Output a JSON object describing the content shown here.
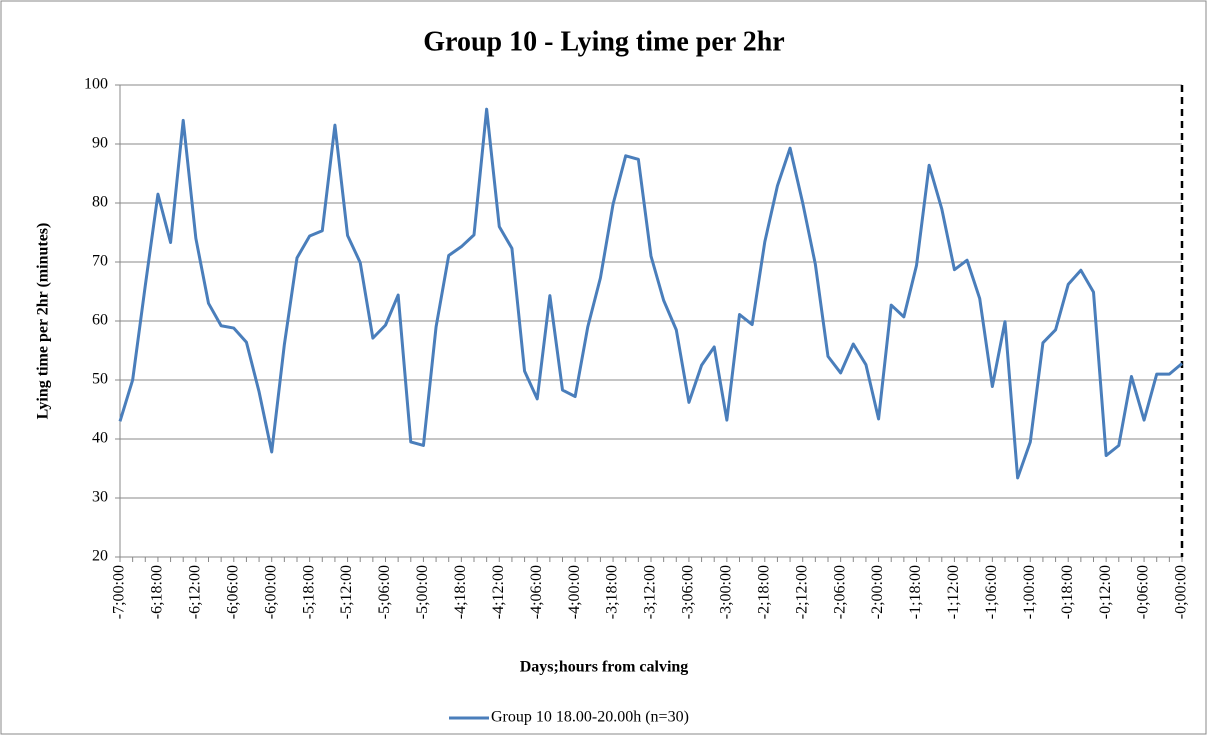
{
  "chart_data": {
    "type": "line",
    "title": "Group 10 - Lying time per 2hr",
    "x_label": "Days;hours from calving",
    "y_label": "Lying time per 2hr (minutes)",
    "categories": [
      "-7;00:00",
      null,
      null,
      "-6;18:00",
      null,
      null,
      "-6;12:00",
      null,
      null,
      "-6;06:00",
      null,
      null,
      "-6;00:00",
      null,
      null,
      "-5;18:00",
      null,
      null,
      "-5;12:00",
      null,
      null,
      "-5;06:00",
      null,
      null,
      "-5;00:00",
      null,
      null,
      "-4;18:00",
      null,
      null,
      "-4;12:00",
      null,
      null,
      "-4;06:00",
      null,
      null,
      "-4;00:00",
      null,
      null,
      "-3;18:00",
      null,
      null,
      "-3;12:00",
      null,
      null,
      "-3;06:00",
      null,
      null,
      "-3;00:00",
      null,
      null,
      "-2;18:00",
      null,
      null,
      "-2;12:00",
      null,
      null,
      "-2;06:00",
      null,
      null,
      "-2;00:00",
      null,
      null,
      "-1;18:00",
      null,
      null,
      "-1;12:00",
      null,
      null,
      "-1;06:00",
      null,
      null,
      "-1;00:00",
      null,
      null,
      "-0;18:00",
      null,
      null,
      "-0;12:00",
      null,
      null,
      "-0;06:00",
      null,
      null,
      "-0;00:00"
    ],
    "series": [
      {
        "name": "Group 10 18.00-20.00h (n=30)",
        "color": "#4a7ebb",
        "values": [
          43,
          50,
          66,
          81.5,
          73.3,
          94,
          74,
          63,
          59.2,
          58.8,
          56.4,
          48,
          37.8,
          56,
          70.7,
          74.4,
          75.3,
          93.2,
          74.5,
          69.9,
          57.1,
          59.3,
          64.4,
          39.5,
          38.9,
          59,
          71.1,
          72.6,
          74.6,
          95.9,
          76,
          72.3,
          51.5,
          46.8,
          64.3,
          48.3,
          47.2,
          59,
          67.3,
          79.8,
          88,
          87.4,
          71,
          63.5,
          58.5,
          46.2,
          52.5,
          55.6,
          43.2,
          61.1,
          59.4,
          73.4,
          82.9,
          89.3,
          80,
          69.6,
          54,
          51.2,
          56.1,
          52.6,
          43.4,
          62.7,
          60.7,
          69.4,
          86.4,
          79,
          68.7,
          70.3,
          63.8,
          48.9,
          59.9,
          33.4,
          39.5,
          56.3,
          58.5,
          66.2,
          68.6,
          64.9,
          37.2,
          38.9,
          50.6,
          43.2,
          51,
          51,
          52.8
        ]
      }
    ],
    "ylim": [
      20,
      100
    ],
    "yticks": [
      20,
      30,
      40,
      50,
      60,
      70,
      80,
      90,
      100
    ],
    "grid": true,
    "legend": "bottom"
  }
}
